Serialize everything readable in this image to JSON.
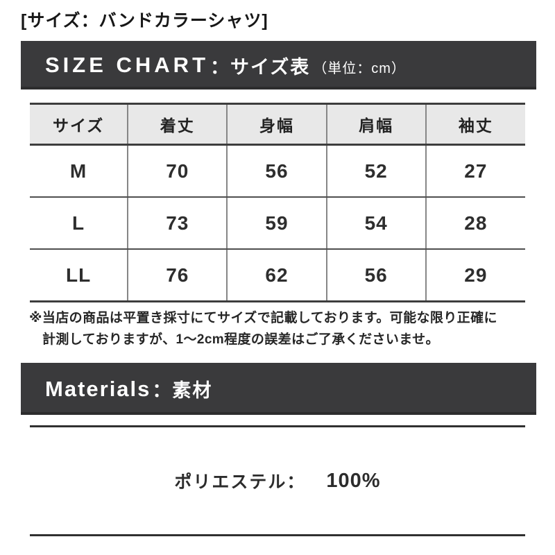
{
  "page_title": "[サイズ：バンドカラーシャツ]",
  "size_chart": {
    "heading_en": "SIZE CHART",
    "heading_sep": "：",
    "heading_jp": "サイズ表",
    "heading_unit": "（単位：cm）",
    "table": {
      "headers": [
        "サイズ",
        "着丈",
        "身幅",
        "肩幅",
        "袖丈"
      ],
      "rows": [
        {
          "size": "M",
          "values": [
            "70",
            "56",
            "52",
            "27"
          ]
        },
        {
          "size": "L",
          "values": [
            "73",
            "59",
            "54",
            "28"
          ]
        },
        {
          "size": "LL",
          "values": [
            "76",
            "62",
            "56",
            "29"
          ]
        }
      ]
    },
    "note_line1": "※当店の商品は平置き採寸にてサイズで記載しております。可能な限り正確に",
    "note_line2": "計測しておりますが、1〜2cm程度の誤差はご了承くださいませ。"
  },
  "materials": {
    "heading_en": "Materials",
    "heading_sep": "：",
    "heading_jp": "素材",
    "item_label": "ポリエステル：",
    "item_value": "100%"
  },
  "colors": {
    "banner_bg": "#3a3a3c",
    "table_header_bg": "#e8e8e8",
    "line_color": "#3d3d3d",
    "text_color": "#2b2b2b"
  }
}
